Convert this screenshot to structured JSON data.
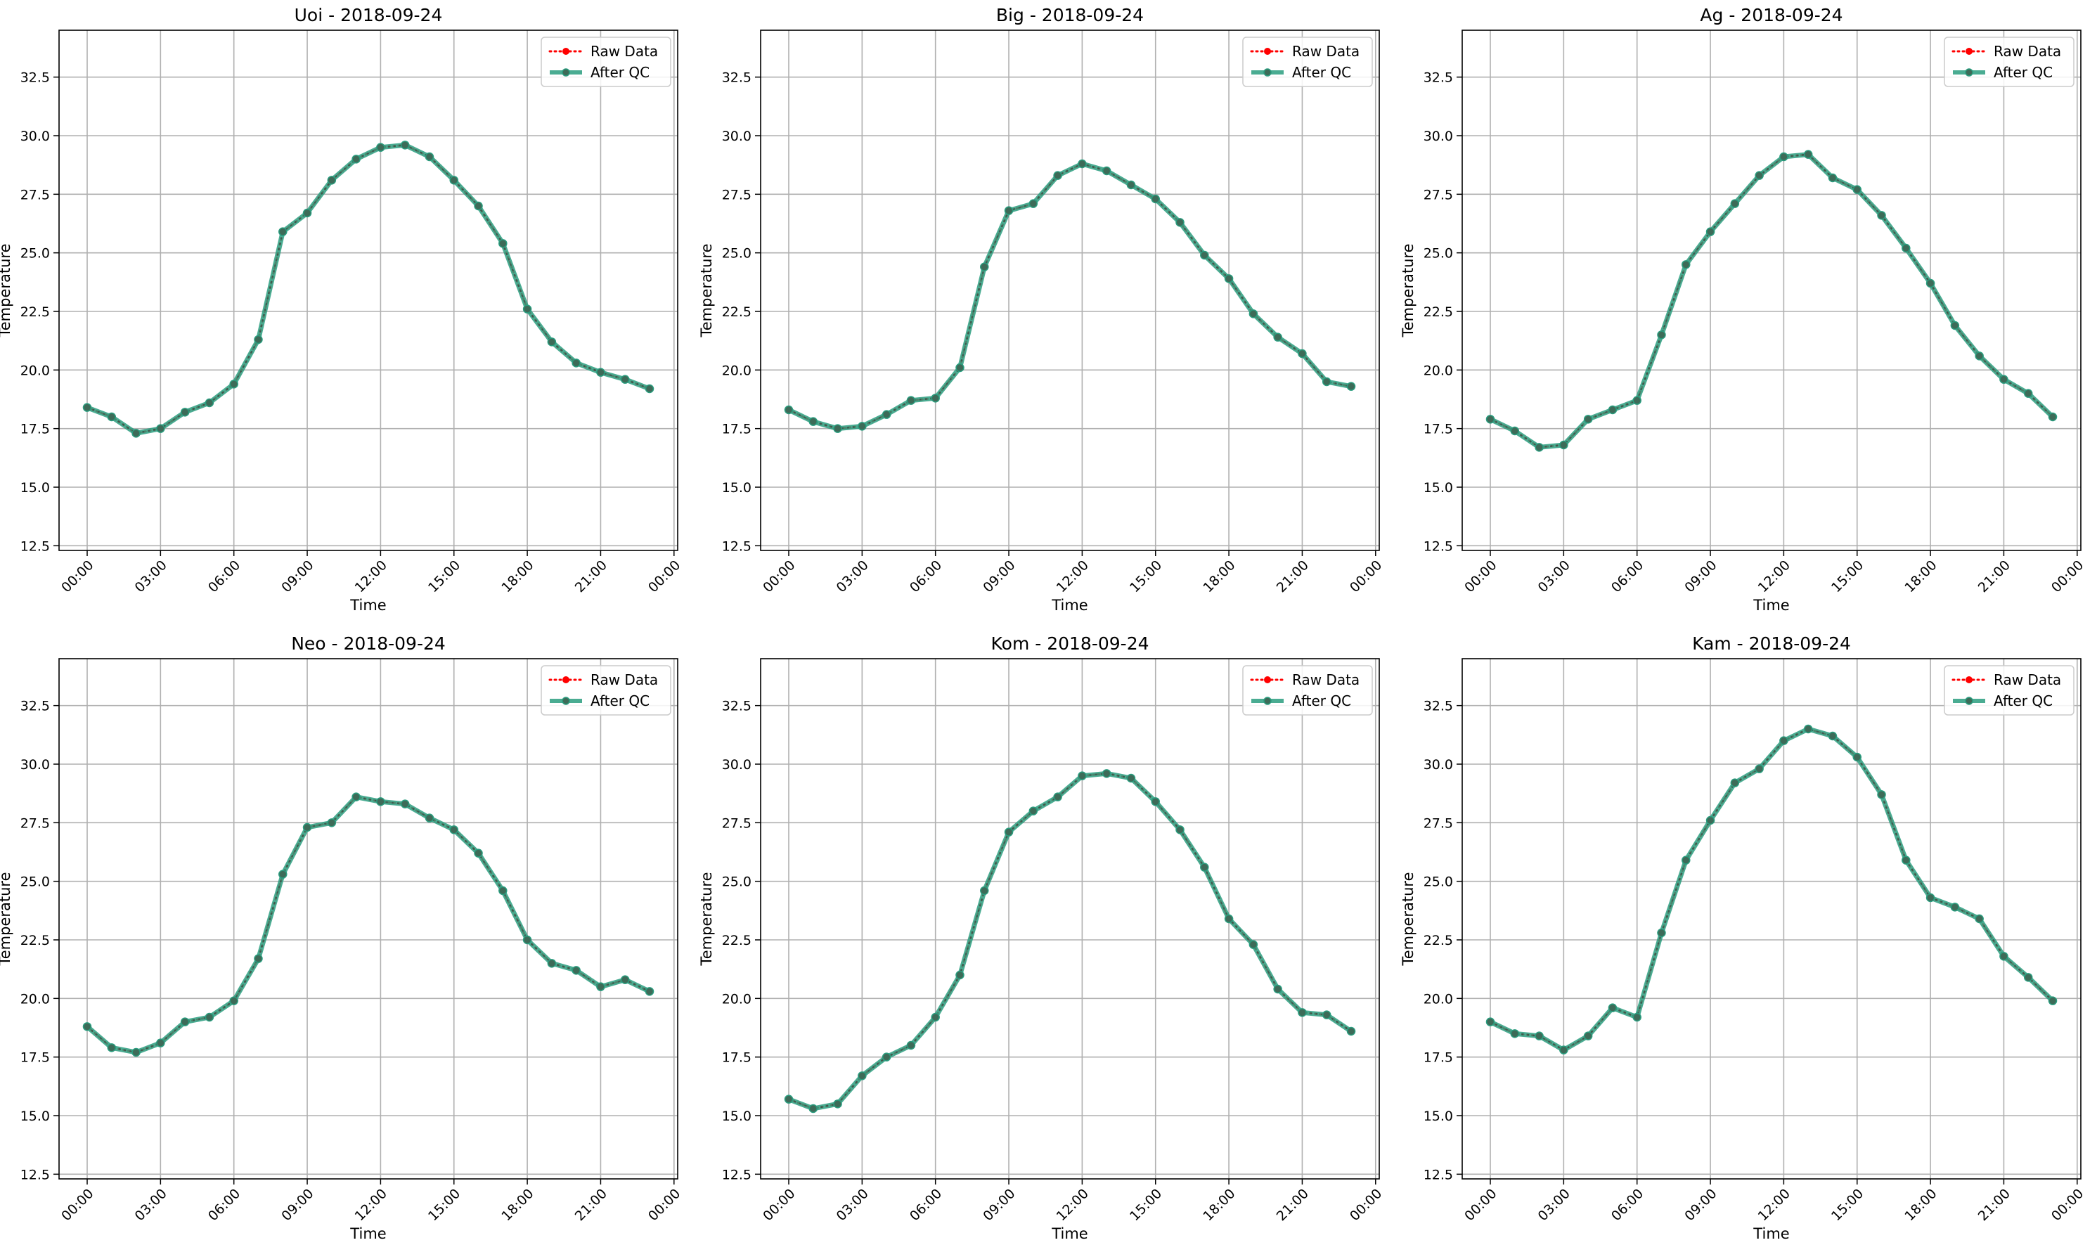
{
  "figure": {
    "background": "#ffffff"
  },
  "chart_data": [
    {
      "type": "line",
      "title": "Uoi - 2018-09-24",
      "xlabel": "Time",
      "ylabel": "Temperature",
      "x_ticks": [
        "00:00",
        "03:00",
        "06:00",
        "09:00",
        "12:00",
        "15:00",
        "18:00",
        "21:00",
        "00:00"
      ],
      "y_ticks": [
        "12.5",
        "15.0",
        "17.5",
        "20.0",
        "22.5",
        "25.0",
        "27.5",
        "30.0",
        "32.5"
      ],
      "xlim_hours": [
        -1.15,
        24.15
      ],
      "ylim": [
        12.3,
        34.5
      ],
      "grid": true,
      "legend": {
        "placement": "top-right",
        "entries": [
          "Raw Data",
          "After QC"
        ]
      },
      "x": [
        "00:00",
        "01:00",
        "02:00",
        "03:00",
        "04:00",
        "05:00",
        "06:00",
        "07:00",
        "08:00",
        "09:00",
        "10:00",
        "11:00",
        "12:00",
        "13:00",
        "14:00",
        "15:00",
        "16:00",
        "17:00",
        "18:00",
        "19:00",
        "20:00",
        "21:00",
        "22:00",
        "23:00"
      ],
      "series": [
        {
          "name": "Raw Data",
          "color": "#ff0000",
          "style": "dotted-markers",
          "values": [
            18.4,
            18.0,
            17.3,
            17.5,
            18.2,
            18.6,
            19.4,
            21.3,
            25.9,
            26.7,
            28.1,
            29.0,
            29.5,
            29.6,
            29.1,
            28.1,
            27.0,
            25.4,
            22.6,
            21.2,
            20.3,
            19.9,
            19.6,
            19.2
          ]
        },
        {
          "name": "After QC",
          "color": "#2a9d7f",
          "style": "solid-markers",
          "values": [
            18.4,
            18.0,
            17.3,
            17.5,
            18.2,
            18.6,
            19.4,
            21.3,
            25.9,
            26.7,
            28.1,
            29.0,
            29.5,
            29.6,
            29.1,
            28.1,
            27.0,
            25.4,
            22.6,
            21.2,
            20.3,
            19.9,
            19.6,
            19.2
          ]
        }
      ]
    },
    {
      "type": "line",
      "title": "Big - 2018-09-24",
      "xlabel": "Time",
      "ylabel": "Temperature",
      "x_ticks": [
        "00:00",
        "03:00",
        "06:00",
        "09:00",
        "12:00",
        "15:00",
        "18:00",
        "21:00",
        "00:00"
      ],
      "y_ticks": [
        "12.5",
        "15.0",
        "17.5",
        "20.0",
        "22.5",
        "25.0",
        "27.5",
        "30.0",
        "32.5"
      ],
      "xlim_hours": [
        -1.15,
        24.15
      ],
      "ylim": [
        12.3,
        34.5
      ],
      "grid": true,
      "legend": {
        "placement": "top-right",
        "entries": [
          "Raw Data",
          "After QC"
        ]
      },
      "x": [
        "00:00",
        "01:00",
        "02:00",
        "03:00",
        "04:00",
        "05:00",
        "06:00",
        "07:00",
        "08:00",
        "09:00",
        "10:00",
        "11:00",
        "12:00",
        "13:00",
        "14:00",
        "15:00",
        "16:00",
        "17:00",
        "18:00",
        "19:00",
        "20:00",
        "21:00",
        "22:00",
        "23:00"
      ],
      "series": [
        {
          "name": "Raw Data",
          "color": "#ff0000",
          "style": "dotted-markers",
          "values": [
            18.3,
            17.8,
            17.5,
            17.6,
            18.1,
            18.7,
            18.8,
            20.1,
            24.4,
            26.8,
            27.1,
            28.3,
            28.8,
            28.5,
            27.9,
            27.3,
            26.3,
            24.9,
            23.9,
            22.4,
            21.4,
            20.7,
            19.5,
            19.3
          ]
        },
        {
          "name": "After QC",
          "color": "#2a9d7f",
          "style": "solid-markers",
          "values": [
            18.3,
            17.8,
            17.5,
            17.6,
            18.1,
            18.7,
            18.8,
            20.1,
            24.4,
            26.8,
            27.1,
            28.3,
            28.8,
            28.5,
            27.9,
            27.3,
            26.3,
            24.9,
            23.9,
            22.4,
            21.4,
            20.7,
            19.5,
            19.3
          ]
        }
      ]
    },
    {
      "type": "line",
      "title": "Ag - 2018-09-24",
      "xlabel": "Time",
      "ylabel": "Temperature",
      "x_ticks": [
        "00:00",
        "03:00",
        "06:00",
        "09:00",
        "12:00",
        "15:00",
        "18:00",
        "21:00",
        "00:00"
      ],
      "y_ticks": [
        "12.5",
        "15.0",
        "17.5",
        "20.0",
        "22.5",
        "25.0",
        "27.5",
        "30.0",
        "32.5"
      ],
      "xlim_hours": [
        -1.15,
        24.15
      ],
      "ylim": [
        12.3,
        34.5
      ],
      "grid": true,
      "legend": {
        "placement": "top-right",
        "entries": [
          "Raw Data",
          "After QC"
        ]
      },
      "x": [
        "00:00",
        "01:00",
        "02:00",
        "03:00",
        "04:00",
        "05:00",
        "06:00",
        "07:00",
        "08:00",
        "09:00",
        "10:00",
        "11:00",
        "12:00",
        "13:00",
        "14:00",
        "15:00",
        "16:00",
        "17:00",
        "18:00",
        "19:00",
        "20:00",
        "21:00",
        "22:00",
        "23:00"
      ],
      "series": [
        {
          "name": "Raw Data",
          "color": "#ff0000",
          "style": "dotted-markers",
          "values": [
            17.9,
            17.4,
            16.7,
            16.8,
            17.9,
            18.3,
            18.7,
            21.5,
            24.5,
            25.9,
            27.1,
            28.3,
            29.1,
            29.2,
            28.2,
            27.7,
            26.6,
            25.2,
            23.7,
            21.9,
            20.6,
            19.6,
            19.0,
            18.0
          ]
        },
        {
          "name": "After QC",
          "color": "#2a9d7f",
          "style": "solid-markers",
          "values": [
            17.9,
            17.4,
            16.7,
            16.8,
            17.9,
            18.3,
            18.7,
            21.5,
            24.5,
            25.9,
            27.1,
            28.3,
            29.1,
            29.2,
            28.2,
            27.7,
            26.6,
            25.2,
            23.7,
            21.9,
            20.6,
            19.6,
            19.0,
            18.0
          ]
        }
      ]
    },
    {
      "type": "line",
      "title": "Neo - 2018-09-24",
      "xlabel": "Time",
      "ylabel": "Temperature",
      "x_ticks": [
        "00:00",
        "03:00",
        "06:00",
        "09:00",
        "12:00",
        "15:00",
        "18:00",
        "21:00",
        "00:00"
      ],
      "y_ticks": [
        "12.5",
        "15.0",
        "17.5",
        "20.0",
        "22.5",
        "25.0",
        "27.5",
        "30.0",
        "32.5"
      ],
      "xlim_hours": [
        -1.15,
        24.15
      ],
      "ylim": [
        12.3,
        34.5
      ],
      "grid": true,
      "legend": {
        "placement": "top-right",
        "entries": [
          "Raw Data",
          "After QC"
        ]
      },
      "x": [
        "00:00",
        "01:00",
        "02:00",
        "03:00",
        "04:00",
        "05:00",
        "06:00",
        "07:00",
        "08:00",
        "09:00",
        "10:00",
        "11:00",
        "12:00",
        "13:00",
        "14:00",
        "15:00",
        "16:00",
        "17:00",
        "18:00",
        "19:00",
        "20:00",
        "21:00",
        "22:00",
        "23:00"
      ],
      "series": [
        {
          "name": "Raw Data",
          "color": "#ff0000",
          "style": "dotted-markers",
          "values": [
            18.8,
            17.9,
            17.7,
            18.1,
            19.0,
            19.2,
            19.9,
            21.7,
            25.3,
            27.3,
            27.5,
            28.6,
            28.4,
            28.3,
            27.7,
            27.2,
            26.2,
            24.6,
            22.5,
            21.5,
            21.2,
            20.5,
            20.8,
            20.3
          ]
        },
        {
          "name": "After QC",
          "color": "#2a9d7f",
          "style": "solid-markers",
          "values": [
            18.8,
            17.9,
            17.7,
            18.1,
            19.0,
            19.2,
            19.9,
            21.7,
            25.3,
            27.3,
            27.5,
            28.6,
            28.4,
            28.3,
            27.7,
            27.2,
            26.2,
            24.6,
            22.5,
            21.5,
            21.2,
            20.5,
            20.8,
            20.3
          ]
        }
      ]
    },
    {
      "type": "line",
      "title": "Kom - 2018-09-24",
      "xlabel": "Time",
      "ylabel": "Temperature",
      "x_ticks": [
        "00:00",
        "03:00",
        "06:00",
        "09:00",
        "12:00",
        "15:00",
        "18:00",
        "21:00",
        "00:00"
      ],
      "y_ticks": [
        "12.5",
        "15.0",
        "17.5",
        "20.0",
        "22.5",
        "25.0",
        "27.5",
        "30.0",
        "32.5"
      ],
      "xlim_hours": [
        -1.15,
        24.15
      ],
      "ylim": [
        12.3,
        34.5
      ],
      "grid": true,
      "legend": {
        "placement": "top-right",
        "entries": [
          "Raw Data",
          "After QC"
        ]
      },
      "x": [
        "00:00",
        "01:00",
        "02:00",
        "03:00",
        "04:00",
        "05:00",
        "06:00",
        "07:00",
        "08:00",
        "09:00",
        "10:00",
        "11:00",
        "12:00",
        "13:00",
        "14:00",
        "15:00",
        "16:00",
        "17:00",
        "18:00",
        "19:00",
        "20:00",
        "21:00",
        "22:00",
        "23:00"
      ],
      "series": [
        {
          "name": "Raw Data",
          "color": "#ff0000",
          "style": "dotted-markers",
          "values": [
            15.7,
            15.3,
            15.5,
            16.7,
            17.5,
            18.0,
            19.2,
            21.0,
            24.6,
            27.1,
            28.0,
            28.6,
            29.5,
            29.6,
            29.4,
            28.4,
            27.2,
            25.6,
            23.4,
            22.3,
            20.4,
            19.4,
            19.3,
            18.6
          ]
        },
        {
          "name": "After QC",
          "color": "#2a9d7f",
          "style": "solid-markers",
          "values": [
            15.7,
            15.3,
            15.5,
            16.7,
            17.5,
            18.0,
            19.2,
            21.0,
            24.6,
            27.1,
            28.0,
            28.6,
            29.5,
            29.6,
            29.4,
            28.4,
            27.2,
            25.6,
            23.4,
            22.3,
            20.4,
            19.4,
            19.3,
            18.6
          ]
        }
      ]
    },
    {
      "type": "line",
      "title": "Kam - 2018-09-24",
      "xlabel": "Time",
      "ylabel": "Temperature",
      "x_ticks": [
        "00:00",
        "03:00",
        "06:00",
        "09:00",
        "12:00",
        "15:00",
        "18:00",
        "21:00",
        "00:00"
      ],
      "y_ticks": [
        "12.5",
        "15.0",
        "17.5",
        "20.0",
        "22.5",
        "25.0",
        "27.5",
        "30.0",
        "32.5"
      ],
      "xlim_hours": [
        -1.15,
        24.15
      ],
      "ylim": [
        12.3,
        34.5
      ],
      "grid": true,
      "legend": {
        "placement": "top-right",
        "entries": [
          "Raw Data",
          "After QC"
        ]
      },
      "x": [
        "00:00",
        "01:00",
        "02:00",
        "03:00",
        "04:00",
        "05:00",
        "06:00",
        "07:00",
        "08:00",
        "09:00",
        "10:00",
        "11:00",
        "12:00",
        "13:00",
        "14:00",
        "15:00",
        "16:00",
        "17:00",
        "18:00",
        "19:00",
        "20:00",
        "21:00",
        "22:00",
        "23:00"
      ],
      "series": [
        {
          "name": "Raw Data",
          "color": "#ff0000",
          "style": "dotted-markers",
          "values": [
            19.0,
            18.5,
            18.4,
            17.8,
            18.4,
            19.6,
            19.2,
            22.8,
            25.9,
            27.6,
            29.2,
            29.8,
            31.0,
            31.5,
            31.2,
            30.3,
            28.7,
            25.9,
            24.3,
            23.9,
            23.4,
            21.8,
            20.9,
            19.9
          ]
        },
        {
          "name": "After QC",
          "color": "#2a9d7f",
          "style": "solid-markers",
          "values": [
            19.0,
            18.5,
            18.4,
            17.8,
            18.4,
            19.6,
            19.2,
            22.8,
            25.9,
            27.6,
            29.2,
            29.8,
            31.0,
            31.5,
            31.2,
            30.3,
            28.7,
            25.9,
            24.3,
            23.9,
            23.4,
            21.8,
            20.9,
            19.9
          ]
        }
      ]
    }
  ]
}
